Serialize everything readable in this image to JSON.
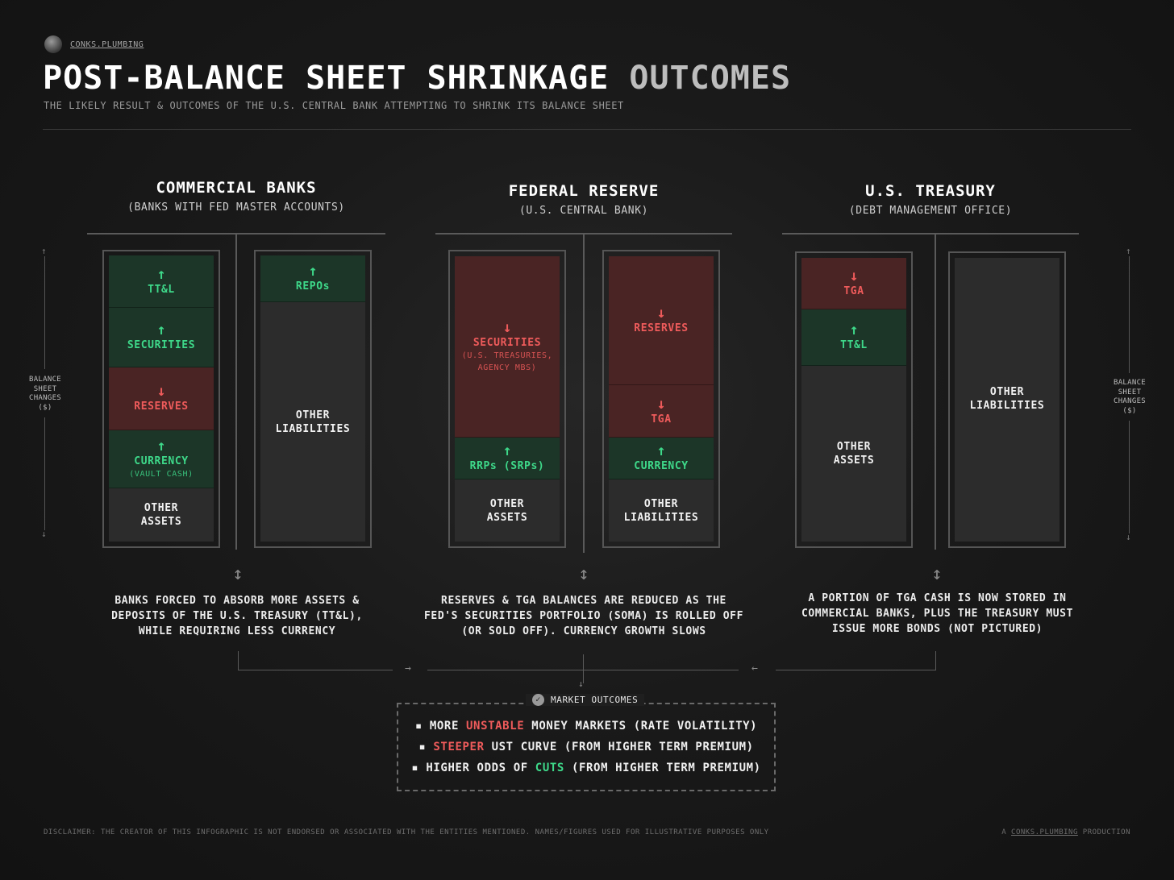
{
  "brand": {
    "name": "CONKS.PLUMBING"
  },
  "header": {
    "title_main": "POST-BALANCE SHEET SHRINKAGE",
    "title_dim": "OUTCOMES",
    "subtitle": "THE LIKELY RESULT & OUTCOMES OF THE U.S. CENTRAL BANK ATTEMPTING TO SHRINK ITS BALANCE SHEET"
  },
  "side_label": "BALANCE SHEET CHANGES ($)",
  "sections": {
    "banks": {
      "title": "COMMERCIAL BANKS",
      "subtitle": "(BANKS WITH FED MASTER ACCOUNTS)",
      "assets": {
        "ttl": {
          "arrow": "↑",
          "label": "TT&L"
        },
        "securities": {
          "arrow": "↑",
          "label": "SECURITIES"
        },
        "reserves": {
          "arrow": "↓",
          "label": "RESERVES"
        },
        "currency": {
          "arrow": "↑",
          "label": "CURRENCY",
          "note": "(VAULT CASH)"
        },
        "other": {
          "label": "OTHER ASSETS"
        }
      },
      "liabilities": {
        "repos": {
          "arrow": "↑",
          "label": "REPOs"
        },
        "other": {
          "label": "OTHER LIABILITIES"
        }
      },
      "description": "BANKS FORCED TO ABSORB MORE ASSETS & DEPOSITS OF THE U.S. TREASURY (TT&L), WHILE REQUIRING LESS CURRENCY"
    },
    "fed": {
      "title": "FEDERAL RESERVE",
      "subtitle": "(U.S. CENTRAL BANK)",
      "assets": {
        "securities": {
          "arrow": "↓",
          "label": "SECURITIES",
          "note": "(U.S. TREASURIES, AGENCY MBS)"
        },
        "rrps": {
          "arrow": "↑",
          "label": "RRPs (SRPs)"
        },
        "other": {
          "label": "OTHER ASSETS"
        }
      },
      "liabilities": {
        "reserves": {
          "arrow": "↓",
          "label": "RESERVES"
        },
        "tga": {
          "arrow": "↓",
          "label": "TGA"
        },
        "currency": {
          "arrow": "↑",
          "label": "CURRENCY"
        },
        "other": {
          "label": "OTHER LIABILITIES"
        }
      },
      "description": "RESERVES & TGA BALANCES ARE REDUCED AS THE FED'S SECURITIES PORTFOLIO (SOMA) IS ROLLED OFF (OR SOLD OFF). CURRENCY GROWTH SLOWS"
    },
    "treasury": {
      "title": "U.S. TREASURY",
      "subtitle": "(DEBT MANAGEMENT OFFICE)",
      "assets": {
        "tga": {
          "arrow": "↓",
          "label": "TGA"
        },
        "ttl": {
          "arrow": "↑",
          "label": "TT&L"
        },
        "other": {
          "label": "OTHER ASSETS"
        }
      },
      "liabilities": {
        "other": {
          "label": "OTHER LIABILITIES"
        }
      },
      "description": "A PORTION OF TGA CASH IS NOW STORED IN COMMERCIAL BANKS, PLUS THE TREASURY MUST ISSUE MORE BONDS (NOT PICTURED)"
    }
  },
  "market_outcomes": {
    "title": "MARKET OUTCOMES",
    "items": [
      {
        "pre": "MORE ",
        "hl": "UNSTABLE",
        "post": " MONEY MARKETS (RATE VOLATILITY)",
        "hl_color": "red"
      },
      {
        "pre": "",
        "hl": "STEEPER",
        "post": " UST CURVE (FROM HIGHER TERM PREMIUM)",
        "hl_color": "red"
      },
      {
        "pre": "HIGHER ODDS OF ",
        "hl": "CUTS",
        "post": " (FROM HIGHER TERM PREMIUM)",
        "hl_color": "green"
      }
    ]
  },
  "footer": {
    "disclaimer": "DISCLAIMER: THE CREATOR OF THIS INFOGRAPHIC IS NOT ENDORSED OR ASSOCIATED WITH THE ENTITIES MENTIONED. NAMES/FIGURES USED FOR ILLUSTRATIVE PURPOSES ONLY",
    "credit_pre": "A ",
    "credit_link": "CONKS.PLUMBING",
    "credit_post": " PRODUCTION"
  },
  "colors": {
    "up": "#3ed98a",
    "down": "#ef5b5b",
    "up_bg": "#1c3628",
    "down_bg": "#4a2424"
  }
}
